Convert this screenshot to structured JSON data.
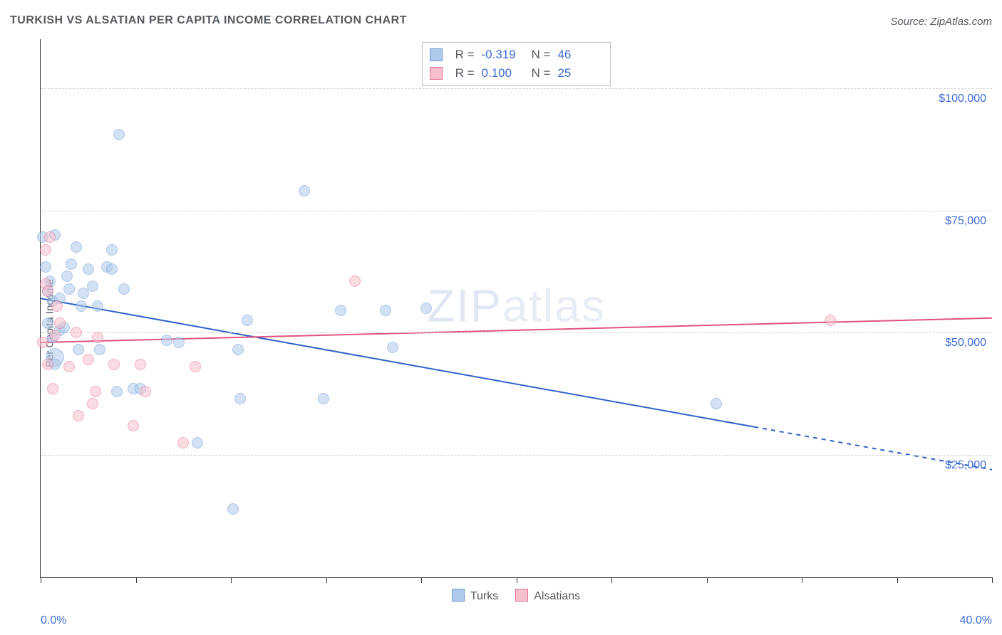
{
  "header": {
    "title": "TURKISH VS ALSATIAN PER CAPITA INCOME CORRELATION CHART",
    "source_prefix": "Source: ",
    "source_name": "ZipAtlas.com"
  },
  "watermark": {
    "part1": "ZIP",
    "part2": "atlas"
  },
  "chart": {
    "type": "scatter",
    "ylabel": "Per Capita Income",
    "xlim": [
      0,
      40
    ],
    "ylim": [
      0,
      110000
    ],
    "x_axis_label_min": "0.0%",
    "x_axis_label_max": "40.0%",
    "background_color": "#ffffff",
    "grid_color": "#cfcfcf",
    "axis_color": "#333333",
    "tick_label_color": "#3f6ad8",
    "text_color": "#555a60",
    "y_gridlines": [
      25000,
      50000,
      75000,
      100000
    ],
    "y_tick_labels": [
      "$25,000",
      "$50,000",
      "$75,000",
      "$100,000"
    ],
    "x_ticks": [
      0,
      4,
      8,
      12,
      16,
      20,
      24,
      28,
      32,
      36,
      40
    ],
    "marker_radius": 8,
    "large_marker_radius": 13,
    "series": [
      {
        "name": "Turks",
        "label": "Turks",
        "fill": "#aec9ea",
        "fill_opacity": 0.55,
        "stroke": "#6d9bd6",
        "stroke_width": 1.2,
        "r_label": "R =",
        "r_value": "-0.319",
        "n_label": "N =",
        "n_value": "46",
        "trend": {
          "color": "#2f63c9",
          "width": 2,
          "y_at_xmin": 57000,
          "y_at_xmax": 22000,
          "solid_until_x": 30,
          "dash_pattern": "6,6"
        },
        "points": [
          [
            0.1,
            69500,
            1
          ],
          [
            0.2,
            63500,
            1
          ],
          [
            0.3,
            58500,
            1
          ],
          [
            0.3,
            52000,
            1
          ],
          [
            0.4,
            60500,
            1
          ],
          [
            0.5,
            49000,
            1
          ],
          [
            0.5,
            56500,
            1
          ],
          [
            0.6,
            70000,
            1
          ],
          [
            0.6,
            45000,
            1.8
          ],
          [
            0.6,
            43500,
            1
          ],
          [
            0.8,
            57000,
            1
          ],
          [
            0.8,
            50500,
            1
          ],
          [
            1.0,
            51000,
            1
          ],
          [
            1.1,
            61500,
            1
          ],
          [
            1.2,
            59000,
            1
          ],
          [
            1.3,
            64000,
            1
          ],
          [
            1.5,
            67500,
            1
          ],
          [
            1.6,
            46500,
            1
          ],
          [
            1.7,
            55500,
            1
          ],
          [
            1.8,
            58000,
            1
          ],
          [
            2.0,
            63000,
            1
          ],
          [
            2.2,
            59500,
            1
          ],
          [
            2.4,
            55500,
            1
          ],
          [
            2.5,
            46500,
            1
          ],
          [
            2.8,
            63500,
            1
          ],
          [
            3.0,
            67000,
            1
          ],
          [
            3.0,
            63000,
            1
          ],
          [
            3.2,
            38000,
            1
          ],
          [
            3.3,
            90500,
            1
          ],
          [
            3.5,
            59000,
            1
          ],
          [
            3.9,
            38500,
            1
          ],
          [
            4.2,
            38500,
            1
          ],
          [
            5.3,
            48500,
            1
          ],
          [
            5.8,
            48000,
            1
          ],
          [
            6.6,
            27500,
            1
          ],
          [
            8.1,
            14000,
            1
          ],
          [
            8.3,
            46500,
            1
          ],
          [
            8.4,
            36500,
            1
          ],
          [
            8.7,
            52500,
            1
          ],
          [
            11.1,
            79000,
            1
          ],
          [
            11.9,
            36500,
            1
          ],
          [
            12.6,
            54500,
            1
          ],
          [
            14.5,
            54500,
            1
          ],
          [
            14.8,
            47000,
            1
          ],
          [
            16.2,
            55000,
            1
          ],
          [
            28.4,
            35500,
            1
          ]
        ]
      },
      {
        "name": "Alsatians",
        "label": "Alsatians",
        "fill": "#f6c0cd",
        "fill_opacity": 0.55,
        "stroke": "#e86f94",
        "stroke_width": 1.2,
        "r_label": "R =",
        "r_value": "0.100",
        "n_label": "N =",
        "n_value": "25",
        "trend": {
          "color": "#e0537d",
          "width": 2,
          "y_at_xmin": 48000,
          "y_at_xmax": 53000,
          "solid_until_x": 40,
          "dash_pattern": ""
        },
        "points": [
          [
            0.1,
            48000,
            1
          ],
          [
            0.2,
            60000,
            1
          ],
          [
            0.2,
            67000,
            1
          ],
          [
            0.3,
            58500,
            1
          ],
          [
            0.3,
            43500,
            1
          ],
          [
            0.4,
            69500,
            1
          ],
          [
            0.5,
            38500,
            1
          ],
          [
            0.6,
            49500,
            1
          ],
          [
            0.7,
            55500,
            1
          ],
          [
            0.8,
            52000,
            1
          ],
          [
            1.2,
            43000,
            1
          ],
          [
            1.5,
            50000,
            1
          ],
          [
            1.6,
            33000,
            1
          ],
          [
            2.0,
            44500,
            1
          ],
          [
            2.2,
            35500,
            1
          ],
          [
            2.3,
            38000,
            1
          ],
          [
            2.4,
            49000,
            1
          ],
          [
            3.1,
            43500,
            1
          ],
          [
            3.9,
            31000,
            1
          ],
          [
            4.2,
            43500,
            1
          ],
          [
            4.4,
            38000,
            1
          ],
          [
            6.0,
            27500,
            1
          ],
          [
            6.5,
            43000,
            1
          ],
          [
            13.2,
            60500,
            1
          ],
          [
            33.2,
            52500,
            1
          ]
        ]
      }
    ],
    "bottom_legend": [
      {
        "label": "Turks",
        "fill": "#aec9ea",
        "stroke": "#6d9bd6"
      },
      {
        "label": "Alsatians",
        "fill": "#f6c0cd",
        "stroke": "#e86f94"
      }
    ]
  }
}
